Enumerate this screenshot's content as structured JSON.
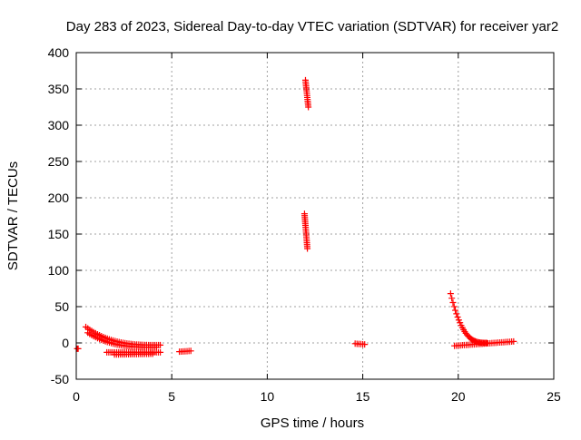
{
  "chart_data": {
    "type": "scatter",
    "title": "Day 283 of 2023, Sidereal Day-to-day VTEC variation (SDTVAR) for receiver yar2",
    "xlabel": "GPS time / hours",
    "ylabel": "SDTVAR / TECUs",
    "xlim": [
      0,
      25
    ],
    "ylim": [
      -50,
      400
    ],
    "xticks": [
      0,
      5,
      10,
      15,
      20,
      25
    ],
    "yticks": [
      -50,
      0,
      50,
      100,
      150,
      200,
      250,
      300,
      350,
      400
    ],
    "grid": true,
    "legend": "none",
    "marker": "+",
    "color": "#ff0000",
    "segments": [
      {
        "name": "start-point",
        "x_start": 0.05,
        "x_end": 0.1,
        "y_start": -8,
        "y_end": -8
      },
      {
        "name": "decay-0.5-4.5h",
        "x_start": 0.5,
        "x_end": 4.4,
        "y_start": 22,
        "y_end": -3
      },
      {
        "name": "decay-0.5-4.5h-lower",
        "x_start": 0.6,
        "x_end": 4.2,
        "y_start": 14,
        "y_end": -6
      },
      {
        "name": "band-1.6-4.4h",
        "x_start": 1.6,
        "x_end": 4.4,
        "y_start": -13,
        "y_end": -13
      },
      {
        "name": "band-2.0-4.0h",
        "x_start": 2.0,
        "x_end": 4.0,
        "y_start": -16,
        "y_end": -15
      },
      {
        "name": "band-5.4-6.0h",
        "x_start": 5.4,
        "x_end": 6.0,
        "y_start": -12,
        "y_end": -11
      },
      {
        "name": "spike-12h-upper",
        "x_start": 12.0,
        "x_end": 12.15,
        "y_start": 362,
        "y_end": 325
      },
      {
        "name": "spike-12h-lower",
        "x_start": 11.95,
        "x_end": 12.1,
        "y_start": 178,
        "y_end": 130
      },
      {
        "name": "band-14.6-15.1h",
        "x_start": 14.6,
        "x_end": 15.1,
        "y_start": -1,
        "y_end": -2
      },
      {
        "name": "rise-19.6-21.5h",
        "x_start": 19.6,
        "x_end": 21.5,
        "y_start": 68,
        "y_end": 0
      },
      {
        "name": "band-19.8-22.9h",
        "x_start": 19.8,
        "x_end": 22.9,
        "y_start": -4,
        "y_end": 2
      }
    ]
  }
}
